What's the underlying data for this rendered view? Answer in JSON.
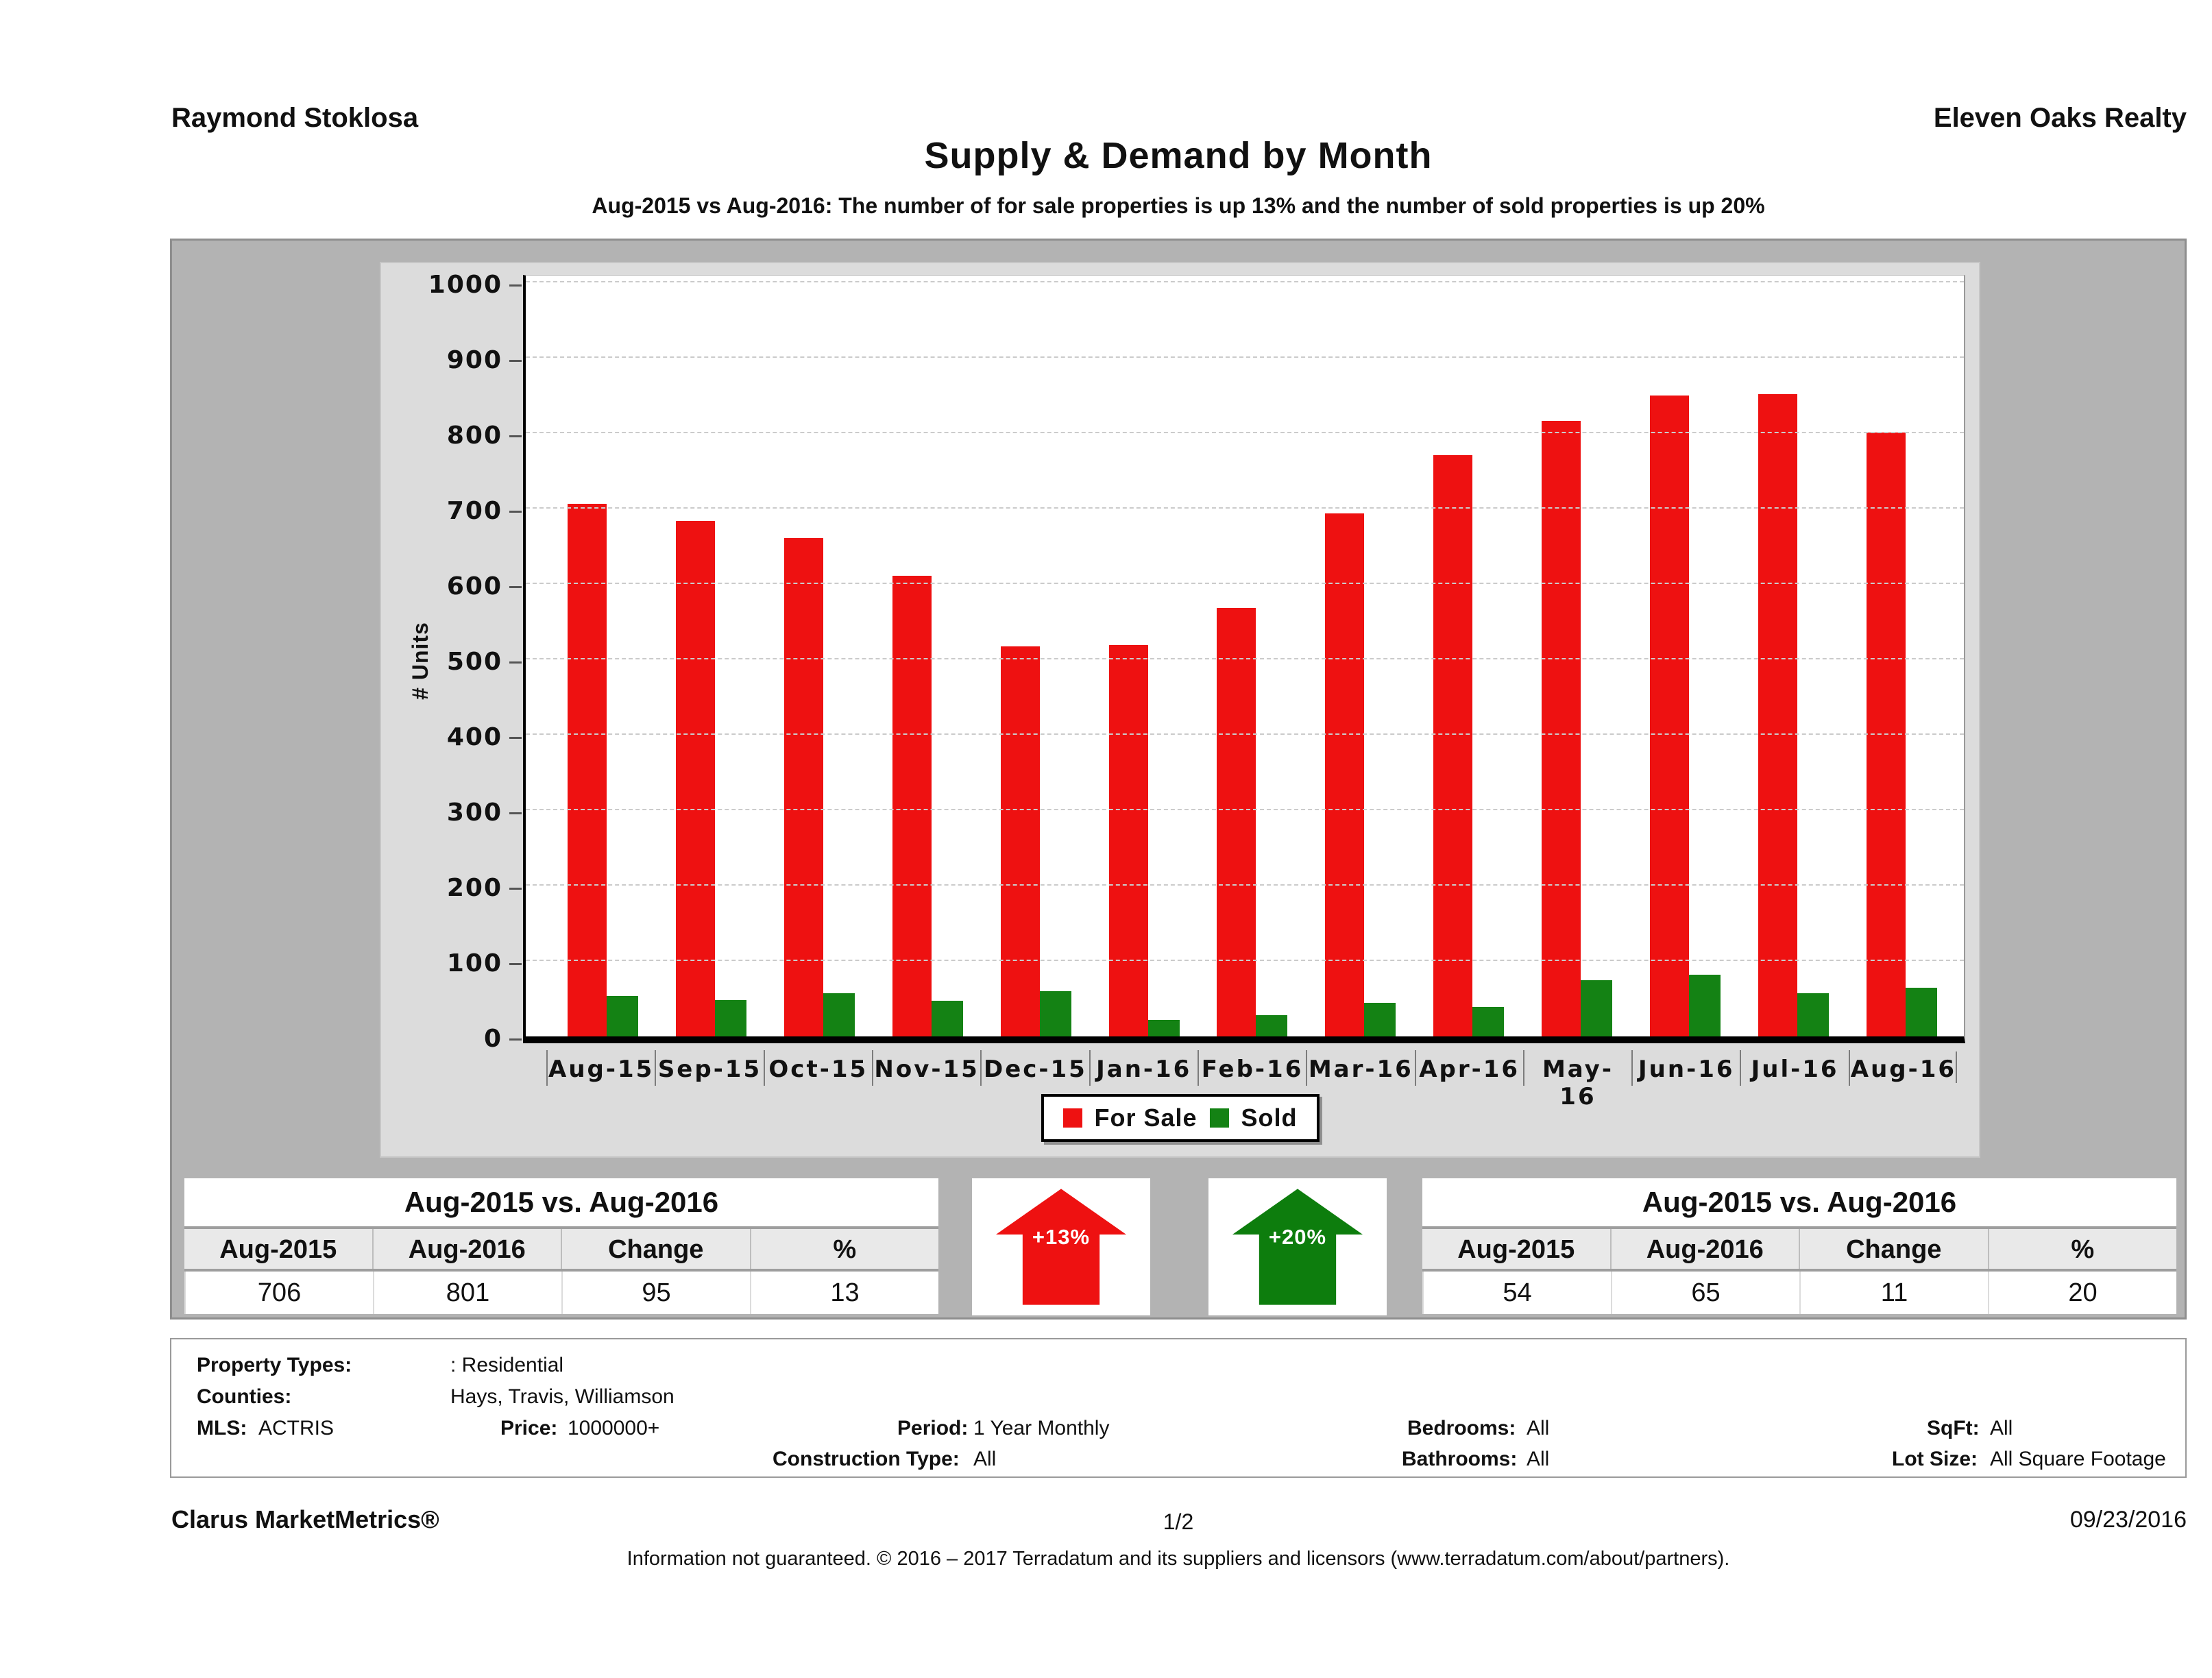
{
  "header": {
    "agent_name": "Raymond Stoklosa",
    "company_name": "Eleven Oaks Realty"
  },
  "chart_data": {
    "type": "bar",
    "title": "Supply & Demand by Month",
    "subtitle": "Aug-2015 vs Aug-2016: The number of for sale properties is up 13% and the number of sold properties is up 20%",
    "categories": [
      "Aug-15",
      "Sep-15",
      "Oct-15",
      "Nov-15",
      "Dec-15",
      "Jan-16",
      "Feb-16",
      "Mar-16",
      "Apr-16",
      "May-16",
      "Jun-16",
      "Jul-16",
      "Aug-16"
    ],
    "series": [
      {
        "name": "For Sale",
        "color": "#ee1111",
        "values": [
          706,
          684,
          661,
          611,
          517,
          519,
          568,
          694,
          771,
          816,
          850,
          852,
          801
        ]
      },
      {
        "name": "Sold",
        "color": "#148214",
        "values": [
          54,
          48,
          57,
          47,
          60,
          22,
          28,
          45,
          39,
          75,
          82,
          57,
          65
        ]
      }
    ],
    "xlabel": "",
    "ylabel": "# Units",
    "ylim": [
      0,
      1000
    ],
    "yticks": [
      0,
      100,
      200,
      300,
      400,
      500,
      600,
      700,
      800,
      900,
      1000
    ],
    "grid": "horizontal-dashed",
    "legend_position": "bottom-center"
  },
  "summary_left": {
    "title": "Aug-2015 vs. Aug-2016",
    "columns": [
      "Aug-2015",
      "Aug-2016",
      "Change",
      "%"
    ],
    "values": [
      "706",
      "801",
      "95",
      "13"
    ]
  },
  "summary_right": {
    "title": "Aug-2015 vs. Aug-2016",
    "columns": [
      "Aug-2015",
      "Aug-2016",
      "Change",
      "%"
    ],
    "values": [
      "54",
      "65",
      "11",
      "20"
    ]
  },
  "arrows": [
    {
      "label": "+13%",
      "color": "#ee1111"
    },
    {
      "label": "+20%",
      "color": "#0d7d0d"
    }
  ],
  "filters": {
    "property_types_label": "Property Types:",
    "property_types_value": ": Residential",
    "counties_label": "Counties:",
    "counties_value": "Hays, Travis, Williamson",
    "mls_label": "MLS:",
    "mls_value": "ACTRIS",
    "price_label": "Price:",
    "price_value": "1000000+",
    "period_label": "Period:",
    "period_value": "1 Year Monthly",
    "construction_label": "Construction Type:",
    "construction_value": "All",
    "bedrooms_label": "Bedrooms:",
    "bedrooms_value": "All",
    "bathrooms_label": "Bathrooms:",
    "bathrooms_value": "All",
    "sqft_label": "SqFt:",
    "sqft_value": "All",
    "lot_label": "Lot Size:",
    "lot_value": "All Square Footage"
  },
  "footer": {
    "brand": "Clarus MarketMetrics®",
    "page": "1/2",
    "date": "09/23/2016",
    "disclaimer": "Information not guaranteed. © 2016 – 2017 Terradatum and its suppliers and licensors (www.terradatum.com/about/partners)."
  }
}
